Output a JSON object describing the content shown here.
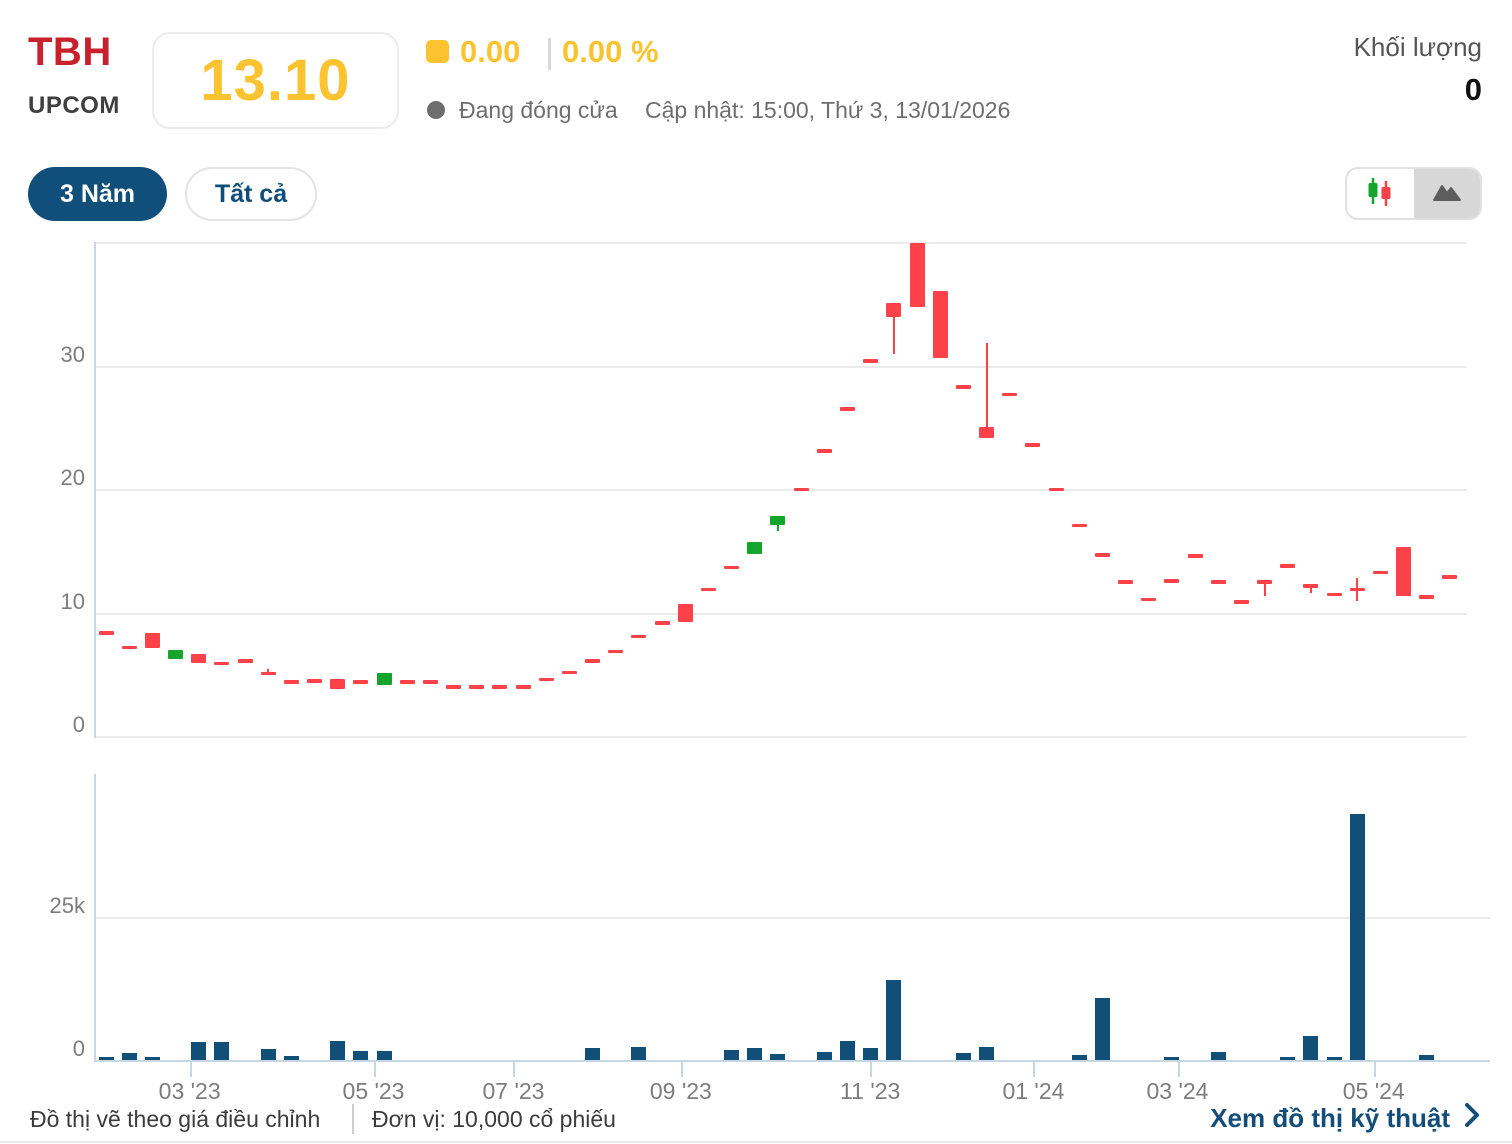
{
  "header": {
    "ticker": "TBH",
    "exchange": "UPCOM",
    "price": "13.10",
    "change": "0.00",
    "change_percent": "0.00 %",
    "market_status": "Đang đóng cửa",
    "updated": "Cập nhật: 15:00, Thứ 3, 13/01/2026",
    "volume_label": "Khối lượng",
    "volume_value": "0"
  },
  "toolbar": {
    "range_buttons": [
      {
        "label": "3 Năm",
        "active": true
      },
      {
        "label": "Tất cả",
        "active": false
      }
    ],
    "chart_type_toggle": {
      "candlestick_selected": false,
      "area_selected": true
    }
  },
  "footer": {
    "note_adjusted": "Đồ thị vẽ theo giá điều chỉnh",
    "note_unit": "Đơn vị: 10,000 cổ phiếu",
    "link_technical": "Xem đồ thị kỹ thuật"
  },
  "colors": {
    "accent_navy": "#104f7a",
    "price_yellow": "#fcc330",
    "ticker_red": "#c9202e",
    "candle_red": "#fb4249",
    "candle_green": "#16a52c",
    "volume_bar": "#114e78",
    "gridline": "#ebebeb",
    "axis_line": "#c6d6e3",
    "tick_label_gray": "#7d7d7d"
  },
  "chart_data": [
    {
      "type": "candlestick",
      "title": "TBH weekly price, 3-year view",
      "ylim": [
        0,
        40
      ],
      "yticks": [
        0,
        10,
        20,
        30
      ],
      "grid": true,
      "x_ticks": [
        {
          "pos": 0.069,
          "label": "03 '23"
        },
        {
          "pos": 0.203,
          "label": "05 '23"
        },
        {
          "pos": 0.305,
          "label": "07 '23"
        },
        {
          "pos": 0.427,
          "label": "09 '23"
        },
        {
          "pos": 0.565,
          "label": "11 '23"
        },
        {
          "pos": 0.684,
          "label": "01 '24"
        },
        {
          "pos": 0.789,
          "label": "03 '24"
        },
        {
          "pos": 0.932,
          "label": "05 '24"
        }
      ],
      "candles_ohlc": [
        [
          8.5,
          8.5,
          8.5,
          8.5
        ],
        [
          7.3,
          7.3,
          7.3,
          7.3
        ],
        [
          8.3,
          8.3,
          7.1,
          7.1
        ],
        [
          6.2,
          7.0,
          6.2,
          7.0
        ],
        [
          6.6,
          6.6,
          5.9,
          5.9
        ],
        [
          6.0,
          6.0,
          6.0,
          6.0
        ],
        [
          6.2,
          6.2,
          6.2,
          6.2
        ],
        [
          5.2,
          5.4,
          5.0,
          5.2
        ],
        [
          4.5,
          4.5,
          4.5,
          4.5
        ],
        [
          4.6,
          4.6,
          4.6,
          4.6
        ],
        [
          4.6,
          4.6,
          3.8,
          3.8
        ],
        [
          4.5,
          4.5,
          4.5,
          4.5
        ],
        [
          4.1,
          5.1,
          4.1,
          5.1
        ],
        [
          4.5,
          4.5,
          4.5,
          4.5
        ],
        [
          4.5,
          4.5,
          4.5,
          4.5
        ],
        [
          4.1,
          4.1,
          4.1,
          4.1
        ],
        [
          4.1,
          4.1,
          4.1,
          4.1
        ],
        [
          4.1,
          4.1,
          4.1,
          4.1
        ],
        [
          4.1,
          4.1,
          4.1,
          4.1
        ],
        [
          4.7,
          4.7,
          4.7,
          4.7
        ],
        [
          5.3,
          5.3,
          5.3,
          5.3
        ],
        [
          6.2,
          6.2,
          6.2,
          6.2
        ],
        [
          7.0,
          7.0,
          7.0,
          7.0
        ],
        [
          8.2,
          8.2,
          8.2,
          8.2
        ],
        [
          9.3,
          9.3,
          9.3,
          9.3
        ],
        [
          10.7,
          10.7,
          9.2,
          9.2
        ],
        [
          12.0,
          12.0,
          12.0,
          12.0
        ],
        [
          13.8,
          13.8,
          13.8,
          13.8
        ],
        [
          14.7,
          15.7,
          14.7,
          15.7
        ],
        [
          17.1,
          17.8,
          16.6,
          17.8
        ],
        [
          20.1,
          20.1,
          20.1,
          20.1
        ],
        [
          23.2,
          23.2,
          23.2,
          23.2
        ],
        [
          26.6,
          26.6,
          26.6,
          26.6
        ],
        [
          30.5,
          30.5,
          30.5,
          30.5
        ],
        [
          35.1,
          35.1,
          30.9,
          33.9
        ],
        [
          39.9,
          39.9,
          34.7,
          34.7
        ],
        [
          36.0,
          36.0,
          30.6,
          30.6
        ],
        [
          28.4,
          28.4,
          28.4,
          28.4
        ],
        [
          25.0,
          31.8,
          24.1,
          24.1
        ],
        [
          27.8,
          27.8,
          27.8,
          27.8
        ],
        [
          23.7,
          23.7,
          23.7,
          23.7
        ],
        [
          20.1,
          20.1,
          20.1,
          20.1
        ],
        [
          17.2,
          17.2,
          17.2,
          17.2
        ],
        [
          14.8,
          14.8,
          14.8,
          14.8
        ],
        [
          12.6,
          12.6,
          12.6,
          12.6
        ],
        [
          11.2,
          11.2,
          11.2,
          11.2
        ],
        [
          12.7,
          12.7,
          12.7,
          12.7
        ],
        [
          14.7,
          14.7,
          14.7,
          14.7
        ],
        [
          12.6,
          12.6,
          12.6,
          12.6
        ],
        [
          11.0,
          11.0,
          11.0,
          11.0
        ],
        [
          12.6,
          12.6,
          11.3,
          12.6
        ],
        [
          13.9,
          13.9,
          13.9,
          13.9
        ],
        [
          12.3,
          12.3,
          11.6,
          12.3
        ],
        [
          11.6,
          11.6,
          11.6,
          11.6
        ],
        [
          12.0,
          12.8,
          10.9,
          12.0
        ],
        [
          13.4,
          13.4,
          13.4,
          13.4
        ],
        [
          15.3,
          15.3,
          11.3,
          11.3
        ],
        [
          11.4,
          11.4,
          11.4,
          11.4
        ],
        [
          13.0,
          13.0,
          13.0,
          13.0
        ]
      ]
    },
    {
      "type": "bar",
      "title": "Volume (unit: 10,000 shares)",
      "ylim": [
        0,
        50000
      ],
      "yticks": [
        {
          "v": 0,
          "label": "0"
        },
        {
          "v": 25000,
          "label": "25k"
        }
      ],
      "values": [
        600,
        1300,
        600,
        0,
        3100,
        3100,
        0,
        2000,
        700,
        0,
        3300,
        1500,
        1500,
        0,
        0,
        0,
        0,
        0,
        0,
        0,
        0,
        2100,
        0,
        2300,
        0,
        0,
        0,
        1700,
        2100,
        1100,
        0,
        1400,
        3300,
        2100,
        14000,
        0,
        0,
        1200,
        2300,
        0,
        0,
        0,
        900,
        10800,
        0,
        0,
        500,
        0,
        1400,
        0,
        0,
        500,
        4200,
        500,
        43000,
        0,
        0,
        900,
        0
      ]
    }
  ]
}
